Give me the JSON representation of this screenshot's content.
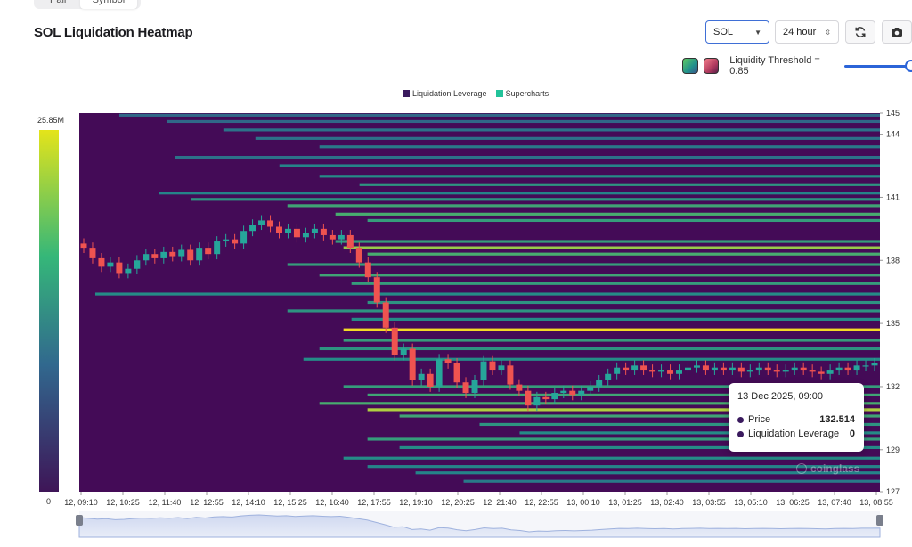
{
  "header": {
    "tabs": [
      {
        "label": "Pair",
        "active": false
      },
      {
        "label": "Symbol",
        "active": true
      }
    ],
    "title": "SOL Liquidation Heatmap",
    "symbol_select": "SOL",
    "range_select": "24 hour",
    "threshold_label": "Liquidity Threshold = 0.85",
    "threshold_value": 0.85
  },
  "colors": {
    "background": "#440b57",
    "low": "#3b528b",
    "mid": "#21918c",
    "high": "#5ec962",
    "peak": "#fde725",
    "candle_up": "#26a69a",
    "candle_down": "#ef5350"
  },
  "tooltip": {
    "title": "13 Dec 2025, 09:00",
    "rows": [
      {
        "label": "Price",
        "value": "132.514"
      },
      {
        "label": "Liquidation Leverage",
        "value": "0"
      }
    ]
  },
  "watermark": "coinglass",
  "chart_data": {
    "type": "heatmap",
    "title": "SOL Liquidation Heatmap",
    "legend": [
      {
        "name": "Liquidation Leverage",
        "color": "#3a1a5e"
      },
      {
        "name": "Supercharts",
        "color": "#22c39a"
      }
    ],
    "legend_placement": "top",
    "colorbar": {
      "max_label": "25.85M",
      "min_label": "0",
      "max": 25.85,
      "min": 0,
      "unit": "M"
    },
    "x_tick_labels": [
      "12, 09:10",
      "12, 10:25",
      "12, 11:40",
      "12, 12:55",
      "12, 14:10",
      "12, 15:25",
      "12, 16:40",
      "12, 17:55",
      "12, 19:10",
      "12, 20:25",
      "12, 21:40",
      "12, 22:55",
      "13, 00:10",
      "13, 01:25",
      "13, 02:40",
      "13, 03:55",
      "13, 05:10",
      "13, 06:25",
      "13, 07:40",
      "13, 08:55"
    ],
    "y_ticks": [
      127,
      129,
      132,
      135,
      138,
      141,
      144,
      145
    ],
    "ylim": [
      127,
      145
    ],
    "price_series": {
      "x_range": [
        "12, 09:10",
        "13, 09:00"
      ],
      "close": [
        138.6,
        138.1,
        137.7,
        137.9,
        137.4,
        137.6,
        138.0,
        138.3,
        138.1,
        138.4,
        138.2,
        138.5,
        138.0,
        138.6,
        138.3,
        138.9,
        139.0,
        138.8,
        139.4,
        139.7,
        139.9,
        139.6,
        139.3,
        139.5,
        139.1,
        139.3,
        139.5,
        139.2,
        139.0,
        139.2,
        138.6,
        137.9,
        137.2,
        136.0,
        134.8,
        133.5,
        133.8,
        132.3,
        132.6,
        132.0,
        133.3,
        133.1,
        132.2,
        131.7,
        132.3,
        133.2,
        132.8,
        133.0,
        132.1,
        131.8,
        131.1,
        131.5,
        131.4,
        131.7,
        131.8,
        131.6,
        131.8,
        132.0,
        132.3,
        132.6,
        132.9,
        132.8,
        133.0,
        132.8,
        132.7,
        132.8,
        132.6,
        132.8,
        132.9,
        133.0,
        132.8,
        132.9,
        132.8,
        132.9,
        132.7,
        132.8,
        132.9,
        132.8,
        132.7,
        132.8,
        132.9,
        132.8,
        132.7,
        132.6,
        132.8,
        132.9,
        132.8,
        133.0,
        133.0,
        133.1
      ]
    },
    "liquidation_bands": [
      {
        "price": 144.9,
        "start": 0.05,
        "intensity": 0.15
      },
      {
        "price": 144.6,
        "start": 0.11,
        "intensity": 0.15
      },
      {
        "price": 144.2,
        "start": 0.18,
        "intensity": 0.2
      },
      {
        "price": 143.8,
        "start": 0.22,
        "intensity": 0.2
      },
      {
        "price": 143.4,
        "start": 0.3,
        "intensity": 0.25
      },
      {
        "price": 142.9,
        "start": 0.12,
        "intensity": 0.2
      },
      {
        "price": 142.5,
        "start": 0.25,
        "intensity": 0.3
      },
      {
        "price": 142.0,
        "start": 0.3,
        "intensity": 0.35
      },
      {
        "price": 141.6,
        "start": 0.35,
        "intensity": 0.4
      },
      {
        "price": 141.2,
        "start": 0.1,
        "intensity": 0.3
      },
      {
        "price": 140.9,
        "start": 0.14,
        "intensity": 0.4
      },
      {
        "price": 140.6,
        "start": 0.26,
        "intensity": 0.5
      },
      {
        "price": 140.2,
        "start": 0.32,
        "intensity": 0.55
      },
      {
        "price": 139.9,
        "start": 0.36,
        "intensity": 0.45
      },
      {
        "price": 138.9,
        "start": 0.32,
        "intensity": 0.45
      },
      {
        "price": 138.6,
        "start": 0.33,
        "intensity": 0.8
      },
      {
        "price": 138.3,
        "start": 0.36,
        "intensity": 0.55
      },
      {
        "price": 137.8,
        "start": 0.26,
        "intensity": 0.45
      },
      {
        "price": 137.3,
        "start": 0.3,
        "intensity": 0.5
      },
      {
        "price": 136.9,
        "start": 0.34,
        "intensity": 0.45
      },
      {
        "price": 136.4,
        "start": 0.02,
        "intensity": 0.35
      },
      {
        "price": 136.0,
        "start": 0.36,
        "intensity": 0.4
      },
      {
        "price": 135.6,
        "start": 0.26,
        "intensity": 0.4
      },
      {
        "price": 135.2,
        "start": 0.34,
        "intensity": 0.35
      },
      {
        "price": 134.7,
        "start": 0.33,
        "intensity": 1.0
      },
      {
        "price": 134.2,
        "start": 0.33,
        "intensity": 0.45
      },
      {
        "price": 133.8,
        "start": 0.3,
        "intensity": 0.4
      },
      {
        "price": 133.3,
        "start": 0.28,
        "intensity": 0.35
      },
      {
        "price": 132.0,
        "start": 0.33,
        "intensity": 0.45
      },
      {
        "price": 131.6,
        "start": 0.36,
        "intensity": 0.5
      },
      {
        "price": 131.2,
        "start": 0.3,
        "intensity": 0.55
      },
      {
        "price": 130.9,
        "start": 0.36,
        "intensity": 0.85
      },
      {
        "price": 130.6,
        "start": 0.4,
        "intensity": 0.5
      },
      {
        "price": 130.2,
        "start": 0.5,
        "intensity": 0.4
      },
      {
        "price": 129.8,
        "start": 0.55,
        "intensity": 0.35
      },
      {
        "price": 129.5,
        "start": 0.36,
        "intensity": 0.45
      },
      {
        "price": 129.1,
        "start": 0.4,
        "intensity": 0.35
      },
      {
        "price": 128.6,
        "start": 0.33,
        "intensity": 0.35
      },
      {
        "price": 128.2,
        "start": 0.36,
        "intensity": 0.3
      },
      {
        "price": 127.9,
        "start": 0.42,
        "intensity": 0.3
      },
      {
        "price": 127.5,
        "start": 0.48,
        "intensity": 0.25
      }
    ]
  }
}
